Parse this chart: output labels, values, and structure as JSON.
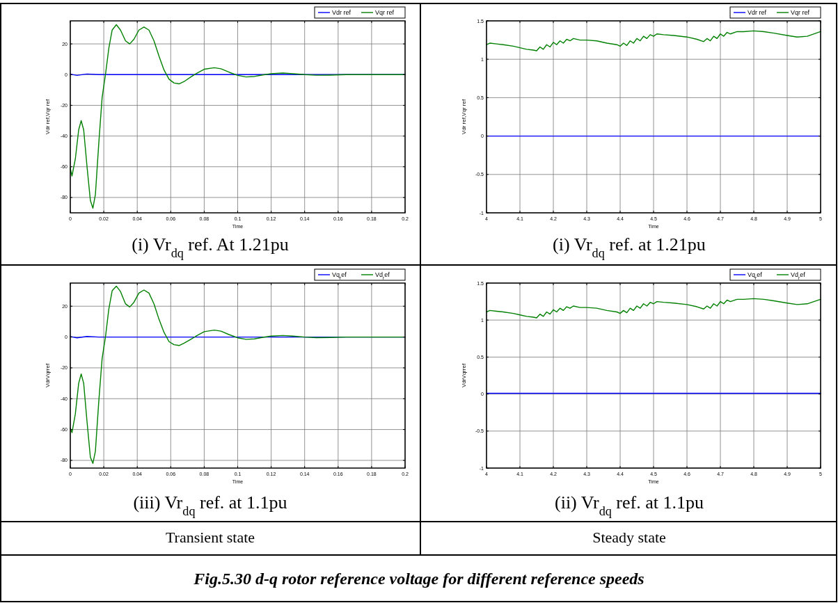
{
  "chart_data": [
    {
      "type": "line",
      "title": "(i) Vr$_{dq}$ ref. At 1.21pu",
      "xlabel": "Time",
      "ylabel": "Vdr ref,Vqr ref",
      "xlim": [
        0,
        0.2
      ],
      "ylim": [
        -90,
        35
      ],
      "xticks": [
        0,
        0.02,
        0.04,
        0.06,
        0.08,
        0.1,
        0.12,
        0.14,
        0.16,
        0.18,
        0.2
      ],
      "yticks": [
        -80,
        -60,
        -40,
        -20,
        0,
        20
      ],
      "grid": true,
      "legend": "top right",
      "series": [
        {
          "name": "Vdr ref",
          "color": "#0000ff",
          "x": [
            0,
            0.004,
            0.01,
            0.017,
            0.2
          ],
          "values": [
            0.3,
            -0.5,
            0.4,
            0,
            0
          ]
        },
        {
          "name": "Vqr ref",
          "color": "#008000",
          "x": [
            0,
            0.001,
            0.003,
            0.005,
            0.0065,
            0.008,
            0.01,
            0.012,
            0.0135,
            0.015,
            0.017,
            0.019,
            0.021,
            0.023,
            0.025,
            0.0275,
            0.03,
            0.033,
            0.0355,
            0.038,
            0.041,
            0.044,
            0.047,
            0.05,
            0.053,
            0.056,
            0.059,
            0.062,
            0.065,
            0.068,
            0.072,
            0.075,
            0.08,
            0.086,
            0.09,
            0.095,
            0.1,
            0.105,
            0.11,
            0.115,
            0.12,
            0.127,
            0.133,
            0.14,
            0.147,
            0.155,
            0.165,
            0.18,
            0.2
          ],
          "values": [
            -61,
            -66,
            -55,
            -36,
            -30,
            -36,
            -60,
            -82,
            -87,
            -78,
            -45,
            -15,
            0,
            17,
            29,
            32.5,
            29,
            22,
            20,
            23,
            29,
            31,
            29,
            22,
            12,
            3,
            -3,
            -5.5,
            -6,
            -4.5,
            -1.5,
            0.5,
            3.5,
            4.5,
            3.8,
            1.5,
            -0.5,
            -1.5,
            -1.2,
            -0.2,
            0.6,
            1,
            0.6,
            0,
            -0.4,
            -0.3,
            0,
            0,
            0
          ]
        }
      ]
    },
    {
      "type": "line",
      "title": "(i) Vr$_{dq}$ ref. at 1.21pu",
      "xlabel": "Time",
      "ylabel": "Vdr ref,Vqr ref",
      "xlim": [
        4,
        5
      ],
      "ylim": [
        -1,
        1.5
      ],
      "xticks": [
        4,
        4.1,
        4.2,
        4.3,
        4.4,
        4.5,
        4.6,
        4.7,
        4.8,
        4.9,
        5
      ],
      "yticks": [
        -1,
        -0.5,
        0,
        0.5,
        1,
        1.5
      ],
      "grid": true,
      "legend": "top right",
      "series": [
        {
          "name": "Vdr ref",
          "color": "#0000ff",
          "x": [
            4,
            5
          ],
          "values": [
            0,
            0
          ]
        },
        {
          "name": "Vqr ref",
          "color": "#008000",
          "x": [
            4,
            4.01,
            4.03,
            4.05,
            4.08,
            4.1,
            4.12,
            4.14,
            4.15,
            4.16,
            4.17,
            4.18,
            4.19,
            4.2,
            4.21,
            4.22,
            4.23,
            4.24,
            4.25,
            4.26,
            4.28,
            4.3,
            4.33,
            4.36,
            4.39,
            4.4,
            4.41,
            4.42,
            4.43,
            4.44,
            4.45,
            4.46,
            4.47,
            4.48,
            4.49,
            4.5,
            4.51,
            4.53,
            4.56,
            4.6,
            4.63,
            4.65,
            4.66,
            4.67,
            4.68,
            4.69,
            4.7,
            4.71,
            4.72,
            4.73,
            4.75,
            4.77,
            4.8,
            4.83,
            4.86,
            4.9,
            4.93,
            4.96,
            5
          ],
          "values": [
            1.19,
            1.21,
            1.2,
            1.19,
            1.17,
            1.15,
            1.13,
            1.12,
            1.11,
            1.16,
            1.13,
            1.19,
            1.16,
            1.22,
            1.19,
            1.24,
            1.21,
            1.26,
            1.24,
            1.27,
            1.25,
            1.25,
            1.24,
            1.21,
            1.19,
            1.17,
            1.21,
            1.18,
            1.24,
            1.21,
            1.27,
            1.24,
            1.3,
            1.27,
            1.32,
            1.3,
            1.33,
            1.32,
            1.31,
            1.29,
            1.26,
            1.23,
            1.27,
            1.24,
            1.3,
            1.27,
            1.33,
            1.3,
            1.35,
            1.33,
            1.36,
            1.36,
            1.37,
            1.36,
            1.34,
            1.31,
            1.29,
            1.3,
            1.36
          ]
        }
      ]
    },
    {
      "type": "line",
      "title": "(iii) Vr$_{dq}$ ref. at 1.1pu",
      "xlabel": "Time",
      "ylabel": "VdrVqrref",
      "xlim": [
        0,
        0.2
      ],
      "ylim": [
        -85,
        35
      ],
      "xticks": [
        0,
        0.02,
        0.04,
        0.06,
        0.08,
        0.1,
        0.12,
        0.14,
        0.16,
        0.18,
        0.2
      ],
      "yticks": [
        -80,
        -60,
        -40,
        -20,
        0,
        20
      ],
      "grid": true,
      "legend": "top right",
      "series": [
        {
          "name": "Vq$_{r}$ef",
          "color": "#0000ff",
          "x": [
            0,
            0.004,
            0.01,
            0.017,
            0.2
          ],
          "values": [
            0.3,
            -0.5,
            0.4,
            0,
            0
          ]
        },
        {
          "name": "Vd$_{r}$ef",
          "color": "#008000",
          "x": [
            0,
            0.001,
            0.003,
            0.005,
            0.0065,
            0.008,
            0.01,
            0.012,
            0.0135,
            0.015,
            0.017,
            0.019,
            0.021,
            0.023,
            0.025,
            0.0275,
            0.03,
            0.033,
            0.0355,
            0.038,
            0.041,
            0.044,
            0.047,
            0.05,
            0.053,
            0.056,
            0.059,
            0.062,
            0.065,
            0.068,
            0.072,
            0.075,
            0.08,
            0.086,
            0.09,
            0.095,
            0.1,
            0.105,
            0.11,
            0.115,
            0.12,
            0.127,
            0.133,
            0.14,
            0.147,
            0.155,
            0.165,
            0.18,
            0.2
          ],
          "values": [
            -59,
            -62,
            -50,
            -30,
            -24,
            -30,
            -55,
            -78,
            -82,
            -74,
            -42,
            -14,
            0,
            18,
            30,
            33,
            29.5,
            21.5,
            19.5,
            22.5,
            28.5,
            30.5,
            28.5,
            21.5,
            11.5,
            3,
            -3,
            -5,
            -5.5,
            -4,
            -1.5,
            0.5,
            3.5,
            4.5,
            3.8,
            1.5,
            -0.5,
            -1.5,
            -1.2,
            -0.2,
            0.6,
            1,
            0.6,
            0,
            -0.4,
            -0.3,
            0,
            0,
            0
          ]
        }
      ]
    },
    {
      "type": "line",
      "title": "(ii) Vr$_{dq}$ ref. at 1.1pu",
      "xlabel": "Time",
      "ylabel": "VdrVqrref",
      "xlim": [
        4,
        5
      ],
      "ylim": [
        -1,
        1.5
      ],
      "xticks": [
        4,
        4.1,
        4.2,
        4.3,
        4.4,
        4.5,
        4.6,
        4.7,
        4.8,
        4.9,
        5
      ],
      "yticks": [
        -1,
        -0.5,
        0,
        0.5,
        1,
        1.5
      ],
      "grid": true,
      "legend": "top right",
      "series": [
        {
          "name": "Vq$_{r}$ef",
          "color": "#0000ff",
          "x": [
            4,
            5
          ],
          "values": [
            0.01,
            0.01
          ]
        },
        {
          "name": "Vd$_{r}$ef",
          "color": "#008000",
          "x": [
            4,
            4.01,
            4.03,
            4.05,
            4.08,
            4.1,
            4.12,
            4.14,
            4.15,
            4.16,
            4.17,
            4.18,
            4.19,
            4.2,
            4.21,
            4.22,
            4.23,
            4.24,
            4.25,
            4.26,
            4.28,
            4.3,
            4.33,
            4.36,
            4.39,
            4.4,
            4.41,
            4.42,
            4.43,
            4.44,
            4.45,
            4.46,
            4.47,
            4.48,
            4.49,
            4.5,
            4.51,
            4.53,
            4.56,
            4.6,
            4.63,
            4.65,
            4.66,
            4.67,
            4.68,
            4.69,
            4.7,
            4.71,
            4.72,
            4.73,
            4.75,
            4.77,
            4.8,
            4.83,
            4.86,
            4.9,
            4.93,
            4.96,
            5
          ],
          "values": [
            1.11,
            1.13,
            1.12,
            1.11,
            1.09,
            1.07,
            1.05,
            1.04,
            1.03,
            1.08,
            1.05,
            1.11,
            1.08,
            1.14,
            1.11,
            1.16,
            1.13,
            1.18,
            1.16,
            1.19,
            1.17,
            1.17,
            1.16,
            1.13,
            1.11,
            1.09,
            1.13,
            1.1,
            1.16,
            1.13,
            1.19,
            1.16,
            1.22,
            1.19,
            1.24,
            1.22,
            1.25,
            1.24,
            1.23,
            1.21,
            1.18,
            1.15,
            1.19,
            1.16,
            1.22,
            1.19,
            1.25,
            1.22,
            1.27,
            1.25,
            1.28,
            1.28,
            1.29,
            1.28,
            1.26,
            1.23,
            1.21,
            1.22,
            1.28
          ]
        }
      ]
    },
    {
      "type": "other",
      "annotations": [
        "Transient state",
        "Steady state",
        "Fig.5.30 d-q rotor reference voltage for different reference speeds"
      ]
    }
  ]
}
